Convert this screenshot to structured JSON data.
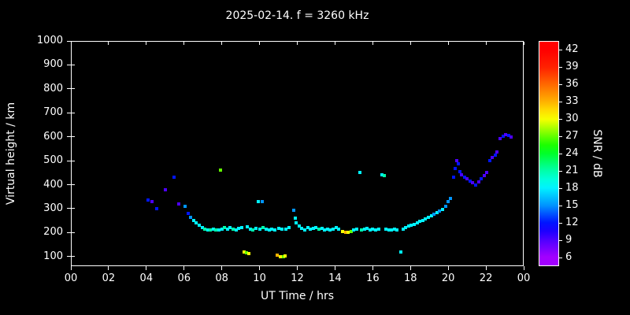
{
  "title": "2025-02-14. f = 3260 kHz",
  "colors": {
    "background": "#000000",
    "foreground": "#ffffff"
  },
  "axes": {
    "x": {
      "label": "UT Time / hrs",
      "range": [
        0,
        24
      ],
      "tick_values": [
        0,
        2,
        4,
        6,
        8,
        10,
        12,
        14,
        16,
        18,
        20,
        22,
        24
      ],
      "tick_labels": [
        "00",
        "02",
        "04",
        "06",
        "08",
        "10",
        "12",
        "14",
        "16",
        "18",
        "20",
        "22",
        "00"
      ]
    },
    "y": {
      "label": "Virtual height / km",
      "range": [
        60,
        1000
      ],
      "tick_values": [
        100,
        200,
        300,
        400,
        500,
        600,
        700,
        800,
        900,
        1000
      ],
      "tick_labels": [
        "100",
        "200",
        "300",
        "400",
        "500",
        "600",
        "700",
        "800",
        "900",
        "1000"
      ]
    }
  },
  "colorbar": {
    "label": "SNR / dB",
    "range": [
      4.5,
      43.5
    ],
    "tick_values": [
      6,
      9,
      12,
      15,
      18,
      21,
      24,
      27,
      30,
      33,
      36,
      39,
      42
    ],
    "tick_labels": [
      "6",
      "9",
      "12",
      "15",
      "18",
      "21",
      "24",
      "27",
      "30",
      "33",
      "36",
      "39",
      "42"
    ]
  },
  "chart_data": {
    "type": "scatter",
    "title": "2025-02-14. f = 3260 kHz",
    "xlabel": "UT Time / hrs",
    "ylabel": "Virtual height / km",
    "xlim": [
      0,
      24
    ],
    "ylim": [
      60,
      1000
    ],
    "color_scale": {
      "label": "SNR / dB",
      "min": 6,
      "max": 42
    },
    "points_format": [
      "ut_hours",
      "virtual_height_km",
      "snr_db"
    ],
    "points": [
      [
        4.1,
        335,
        12
      ],
      [
        4.3,
        330,
        9
      ],
      [
        4.55,
        300,
        12
      ],
      [
        5.0,
        380,
        9
      ],
      [
        5.45,
        430,
        12
      ],
      [
        5.7,
        320,
        9
      ],
      [
        6.05,
        310,
        15
      ],
      [
        6.2,
        280,
        12
      ],
      [
        6.35,
        265,
        15
      ],
      [
        6.5,
        250,
        18
      ],
      [
        6.65,
        240,
        18
      ],
      [
        6.8,
        230,
        18
      ],
      [
        6.95,
        222,
        18
      ],
      [
        7.1,
        215,
        21
      ],
      [
        7.25,
        212,
        18
      ],
      [
        7.4,
        210,
        21
      ],
      [
        7.55,
        214,
        18
      ],
      [
        7.7,
        210,
        21
      ],
      [
        7.85,
        212,
        18
      ],
      [
        7.95,
        460,
        27
      ],
      [
        8.0,
        216,
        18
      ],
      [
        8.15,
        220,
        21
      ],
      [
        8.3,
        214,
        18
      ],
      [
        8.45,
        222,
        18
      ],
      [
        8.6,
        216,
        21
      ],
      [
        8.75,
        212,
        18
      ],
      [
        8.9,
        218,
        18
      ],
      [
        9.05,
        222,
        18
      ],
      [
        9.2,
        120,
        30
      ],
      [
        9.3,
        116,
        27
      ],
      [
        9.45,
        112,
        30
      ],
      [
        9.35,
        224,
        18
      ],
      [
        9.5,
        216,
        18
      ],
      [
        9.65,
        212,
        21
      ],
      [
        9.8,
        218,
        18
      ],
      [
        9.95,
        330,
        18
      ],
      [
        10.15,
        330,
        15
      ],
      [
        10.0,
        214,
        18
      ],
      [
        10.2,
        220,
        21
      ],
      [
        10.35,
        214,
        18
      ],
      [
        10.5,
        210,
        18
      ],
      [
        10.65,
        216,
        18
      ],
      [
        10.8,
        212,
        18
      ],
      [
        10.95,
        105,
        33
      ],
      [
        11.1,
        100,
        30
      ],
      [
        11.25,
        100,
        27
      ],
      [
        11.35,
        102,
        30
      ],
      [
        11.0,
        218,
        18
      ],
      [
        11.2,
        214,
        18
      ],
      [
        11.4,
        216,
        18
      ],
      [
        11.55,
        220,
        18
      ],
      [
        11.8,
        295,
        15
      ],
      [
        11.9,
        262,
        18
      ],
      [
        11.95,
        240,
        18
      ],
      [
        12.1,
        228,
        18
      ],
      [
        12.25,
        218,
        18
      ],
      [
        12.4,
        212,
        18
      ],
      [
        12.55,
        222,
        18
      ],
      [
        12.7,
        214,
        18
      ],
      [
        12.85,
        218,
        18
      ],
      [
        13.0,
        220,
        18
      ],
      [
        13.15,
        214,
        21
      ],
      [
        13.3,
        218,
        18
      ],
      [
        13.45,
        212,
        18
      ],
      [
        13.6,
        216,
        18
      ],
      [
        13.75,
        210,
        18
      ],
      [
        13.9,
        214,
        18
      ],
      [
        14.05,
        222,
        18
      ],
      [
        14.2,
        214,
        18
      ],
      [
        14.4,
        205,
        30
      ],
      [
        14.55,
        200,
        33
      ],
      [
        14.7,
        202,
        30
      ],
      [
        14.85,
        206,
        27
      ],
      [
        15.0,
        210,
        18
      ],
      [
        15.15,
        214,
        18
      ],
      [
        15.3,
        450,
        18
      ],
      [
        15.4,
        210,
        21
      ],
      [
        15.55,
        214,
        18
      ],
      [
        15.7,
        218,
        18
      ],
      [
        15.85,
        212,
        18
      ],
      [
        16.0,
        214,
        18
      ],
      [
        16.15,
        210,
        18
      ],
      [
        16.3,
        214,
        18
      ],
      [
        16.5,
        440,
        18
      ],
      [
        16.62,
        438,
        21
      ],
      [
        16.7,
        214,
        18
      ],
      [
        16.85,
        210,
        18
      ],
      [
        17.0,
        212,
        18
      ],
      [
        17.15,
        214,
        18
      ],
      [
        17.3,
        210,
        18
      ],
      [
        17.5,
        120,
        18
      ],
      [
        17.6,
        214,
        18
      ],
      [
        17.75,
        222,
        18
      ],
      [
        17.9,
        226,
        18
      ],
      [
        18.05,
        230,
        18
      ],
      [
        18.2,
        234,
        18
      ],
      [
        18.35,
        240,
        18
      ],
      [
        18.5,
        246,
        18
      ],
      [
        18.65,
        252,
        18
      ],
      [
        18.8,
        258,
        18
      ],
      [
        18.95,
        264,
        18
      ],
      [
        19.1,
        270,
        18
      ],
      [
        19.25,
        276,
        15
      ],
      [
        19.4,
        282,
        18
      ],
      [
        19.55,
        290,
        15
      ],
      [
        19.7,
        298,
        18
      ],
      [
        19.85,
        310,
        15
      ],
      [
        20.0,
        328,
        15
      ],
      [
        20.1,
        342,
        15
      ],
      [
        20.3,
        432,
        12
      ],
      [
        20.38,
        468,
        12
      ],
      [
        20.45,
        500,
        9
      ],
      [
        20.52,
        488,
        12
      ],
      [
        20.6,
        455,
        12
      ],
      [
        20.7,
        442,
        9
      ],
      [
        20.85,
        432,
        12
      ],
      [
        21.0,
        424,
        9
      ],
      [
        21.15,
        416,
        12
      ],
      [
        21.3,
        408,
        9
      ],
      [
        21.45,
        400,
        12
      ],
      [
        21.6,
        412,
        9
      ],
      [
        21.75,
        424,
        12
      ],
      [
        21.9,
        438,
        9
      ],
      [
        22.05,
        452,
        9
      ],
      [
        22.2,
        500,
        12
      ],
      [
        22.35,
        512,
        9
      ],
      [
        22.5,
        522,
        12
      ],
      [
        22.6,
        535,
        9
      ],
      [
        22.75,
        592,
        9
      ],
      [
        22.9,
        602,
        12
      ],
      [
        23.05,
        610,
        9
      ],
      [
        23.2,
        605,
        12
      ],
      [
        23.35,
        600,
        9
      ]
    ]
  }
}
